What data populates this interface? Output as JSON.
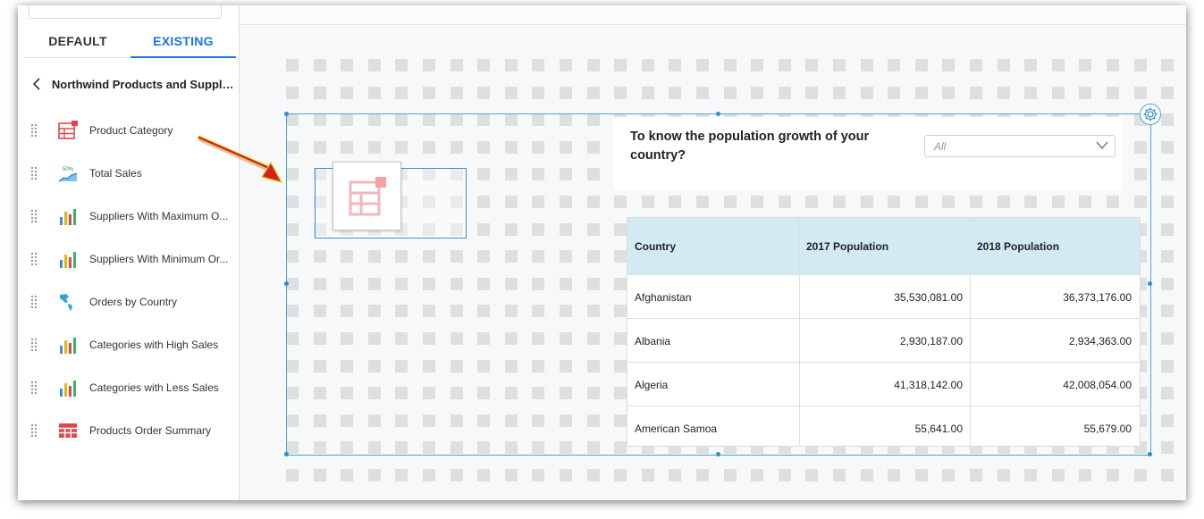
{
  "sidebar": {
    "tabs": [
      {
        "label": "DEFAULT"
      },
      {
        "label": "EXISTING"
      }
    ],
    "breadcrumb_title": "Northwind Products and Supplie...",
    "items": [
      {
        "label": "Product Category",
        "icon": "table-icon"
      },
      {
        "label": "Total Sales",
        "icon": "area-chart-icon"
      },
      {
        "label": "Suppliers With Maximum O...",
        "icon": "bar-chart-icon"
      },
      {
        "label": "Suppliers With Minimum Or...",
        "icon": "bar-chart-icon"
      },
      {
        "label": "Orders by Country",
        "icon": "map-icon"
      },
      {
        "label": "Categories with High Sales",
        "icon": "bar-chart-icon"
      },
      {
        "label": "Categories with Less Sales",
        "icon": "bar-chart-icon"
      },
      {
        "label": "Products Order Summary",
        "icon": "grid-icon"
      }
    ],
    "total_sales_icon_text": "50%"
  },
  "widget": {
    "question": "To know the population growth of your country?",
    "filter": {
      "value": "All"
    },
    "table": {
      "columns": [
        "Country",
        "2017 Population",
        "2018 Population"
      ],
      "rows": [
        [
          "Afghanistan",
          "35,530,081.00",
          "36,373,176.00"
        ],
        [
          "Albania",
          "2,930,187.00",
          "2,934,363.00"
        ],
        [
          "Algeria",
          "41,318,142.00",
          "42,008,054.00"
        ],
        [
          "American Samoa",
          "55,641.00",
          "55,679.00"
        ]
      ]
    }
  },
  "colors": {
    "accent": "#1a73e8",
    "table_header": "#d2eaf2",
    "selection": "#4aa6d6",
    "arrow": "#e02020",
    "table_icon": "#e04848"
  }
}
